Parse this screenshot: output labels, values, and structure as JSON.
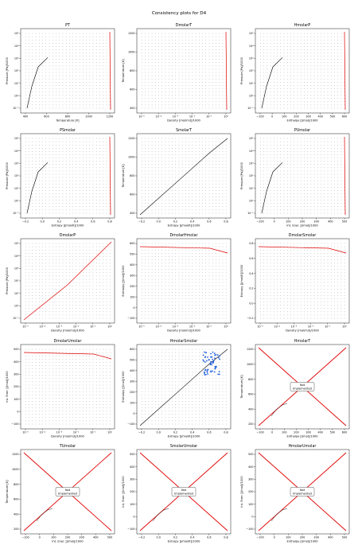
{
  "suptitle": "Consistency plots for D4",
  "chart_data": [
    {
      "title": "PT",
      "type": "scatter",
      "xlabel": "Temperature [K]",
      "ylabel": "Pressure [Pa]/1000",
      "xticks": [
        "400",
        "600",
        "800",
        "1000",
        "1200"
      ],
      "yticks": [
        "10⁵",
        "10⁴",
        "10³",
        "10²",
        "10¹",
        "10⁰",
        "10⁻¹"
      ],
      "ylog": true
    },
    {
      "title": "DmolarT",
      "type": "scatter",
      "xlabel": "Density [mol/m3]/1000",
      "ylabel": "Temperature [K]",
      "xticks": [
        "10⁻⁵",
        "10⁻⁴",
        "10⁻³",
        "10⁻²",
        "10⁻¹",
        "10⁰"
      ],
      "yticks": [
        "1200",
        "1000",
        "800",
        "600",
        "400"
      ],
      "xlog": true
    },
    {
      "title": "HmolarP",
      "type": "scatter",
      "xlabel": "Enthalpy [J/mol]/1000",
      "ylabel": "Pressure [Pa]/1000",
      "xticks": [
        "−100",
        "0",
        "100",
        "200",
        "300",
        "400",
        "500",
        "600"
      ],
      "yticks": [
        "10⁵",
        "10⁴",
        "10³",
        "10²",
        "10¹",
        "10⁰",
        "10⁻¹"
      ],
      "ylog": true
    },
    {
      "title": "PSmolar",
      "type": "scatter",
      "xlabel": "Entropy [J/mol/K]/1000",
      "ylabel": "Pressure [Pa]/1000",
      "xticks": [
        "−0.2",
        "0.0",
        "0.2",
        "0.4",
        "0.6",
        "0.8"
      ],
      "yticks": [
        "10⁵",
        "10⁴",
        "10³",
        "10²",
        "10¹",
        "10⁰",
        "10⁻¹"
      ],
      "ylog": true
    },
    {
      "title": "SmolarT",
      "type": "scatter",
      "xlabel": "Entropy [J/mol/K]/1000",
      "ylabel": "Temperature [K]",
      "xticks": [
        "−0.2",
        "0.0",
        "0.2",
        "0.4",
        "0.6",
        "0.8"
      ],
      "yticks": [
        "1200",
        "1000",
        "800",
        "600",
        "400"
      ]
    },
    {
      "title": "PUmolar",
      "type": "scatter",
      "xlabel": "Int. Ener. [J/mol]/1000",
      "ylabel": "Pressure [Pa]/1000",
      "xticks": [
        "−100",
        "0",
        "100",
        "200",
        "300",
        "400",
        "500"
      ],
      "yticks": [
        "10⁵",
        "10⁴",
        "10³",
        "10²",
        "10¹",
        "10⁰",
        "10⁻¹"
      ],
      "ylog": true
    },
    {
      "title": "DmolarP",
      "type": "scatter",
      "xlabel": "Density [mol/m3]/1000",
      "ylabel": "Pressure [Pa]/1000",
      "xticks": [
        "10⁻⁵",
        "10⁻⁴",
        "10⁻³",
        "10⁻²",
        "10⁻¹",
        "10⁰"
      ],
      "yticks": [
        "10⁵",
        "10⁴",
        "10³",
        "10²",
        "10¹",
        "10⁰",
        "10⁻¹"
      ],
      "xlog": true,
      "ylog": true
    },
    {
      "title": "DmolarHmolar",
      "type": "scatter",
      "xlabel": "Density [mol/m3]/1000",
      "ylabel": "Enthalpy [J/mol]/1000",
      "xticks": [
        "10⁻⁵",
        "10⁻⁴",
        "10⁻³",
        "10⁻²",
        "10⁻¹",
        "10⁰"
      ],
      "yticks": [
        "600",
        "500",
        "400",
        "300",
        "200",
        "100",
        "0",
        "−100"
      ],
      "xlog": true
    },
    {
      "title": "DmolarSmolar",
      "type": "scatter",
      "xlabel": "Density [mol/m3]/1000",
      "ylabel": "Entropy [J/mol/K]/1000",
      "xticks": [
        "10⁻⁵",
        "10⁻⁴",
        "10⁻³",
        "10⁻²",
        "10⁻¹",
        "10⁰"
      ],
      "yticks": [
        "0.8",
        "0.6",
        "0.4",
        "0.2",
        "0.0",
        "−0.2"
      ],
      "xlog": true
    },
    {
      "title": "DmolarUmolar",
      "type": "scatter",
      "xlabel": "Density [mol/m3]/1000",
      "ylabel": "Int. Ener. [J/mol]/1000",
      "xticks": [
        "10⁻⁵",
        "10⁻⁴",
        "10⁻³",
        "10⁻²",
        "10⁻¹",
        "10⁰"
      ],
      "yticks": [
        "500",
        "400",
        "300",
        "200",
        "100",
        "0",
        "−100"
      ],
      "xlog": true
    },
    {
      "title": "HmolarSmolar",
      "type": "scatter",
      "xlabel": "Entropy [J/mol/K]/1000",
      "ylabel": "Enthalpy [J/mol]/1000",
      "xticks": [
        "−0.2",
        "0.0",
        "0.2",
        "0.4",
        "0.6",
        "0.8"
      ],
      "yticks": [
        "600",
        "500",
        "400",
        "300",
        "200",
        "100",
        "0",
        "−100"
      ]
    },
    {
      "title": "HmolarT",
      "type": "scatter",
      "xlabel": "Enthalpy [J/mol]/1000",
      "ylabel": "Temperature [K]",
      "xticks": [
        "−100",
        "0",
        "100",
        "200",
        "300",
        "400",
        "500",
        "600"
      ],
      "yticks": [
        "1200",
        "1000",
        "800",
        "600",
        "400",
        "200"
      ],
      "not_implemented": "Not Implemented"
    },
    {
      "title": "TUmolar",
      "type": "scatter",
      "xlabel": "Int. Ener. [J/mol]/1000",
      "ylabel": "Temperature [K]",
      "xticks": [
        "−100",
        "0",
        "100",
        "200",
        "300",
        "400",
        "500"
      ],
      "yticks": [
        "1200",
        "1000",
        "800",
        "600",
        "400",
        "200"
      ],
      "not_implemented": "Not Implemented"
    },
    {
      "title": "SmolarUmolar",
      "type": "scatter",
      "xlabel": "Entropy [J/mol/K]/1000",
      "ylabel": "Int. Ener. [J/mol]/1000",
      "xticks": [
        "−0.2",
        "0.0",
        "0.2",
        "0.4",
        "0.6",
        "0.8"
      ],
      "yticks": [
        "500",
        "400",
        "300",
        "200",
        "100",
        "0",
        "−100"
      ],
      "not_implemented": "Not Implemented"
    },
    {
      "title": "HmolarUmolar",
      "type": "scatter",
      "xlabel": "Enthalpy [J/mol]/1000",
      "ylabel": "Int. Ener. [J/mol]/1000",
      "xticks": [
        "−100",
        "0",
        "100",
        "200",
        "300",
        "400",
        "500"
      ],
      "yticks": [
        "500",
        "400",
        "300",
        "200",
        "100",
        "0",
        "−100"
      ],
      "not_implemented": "Not Implemented"
    }
  ]
}
